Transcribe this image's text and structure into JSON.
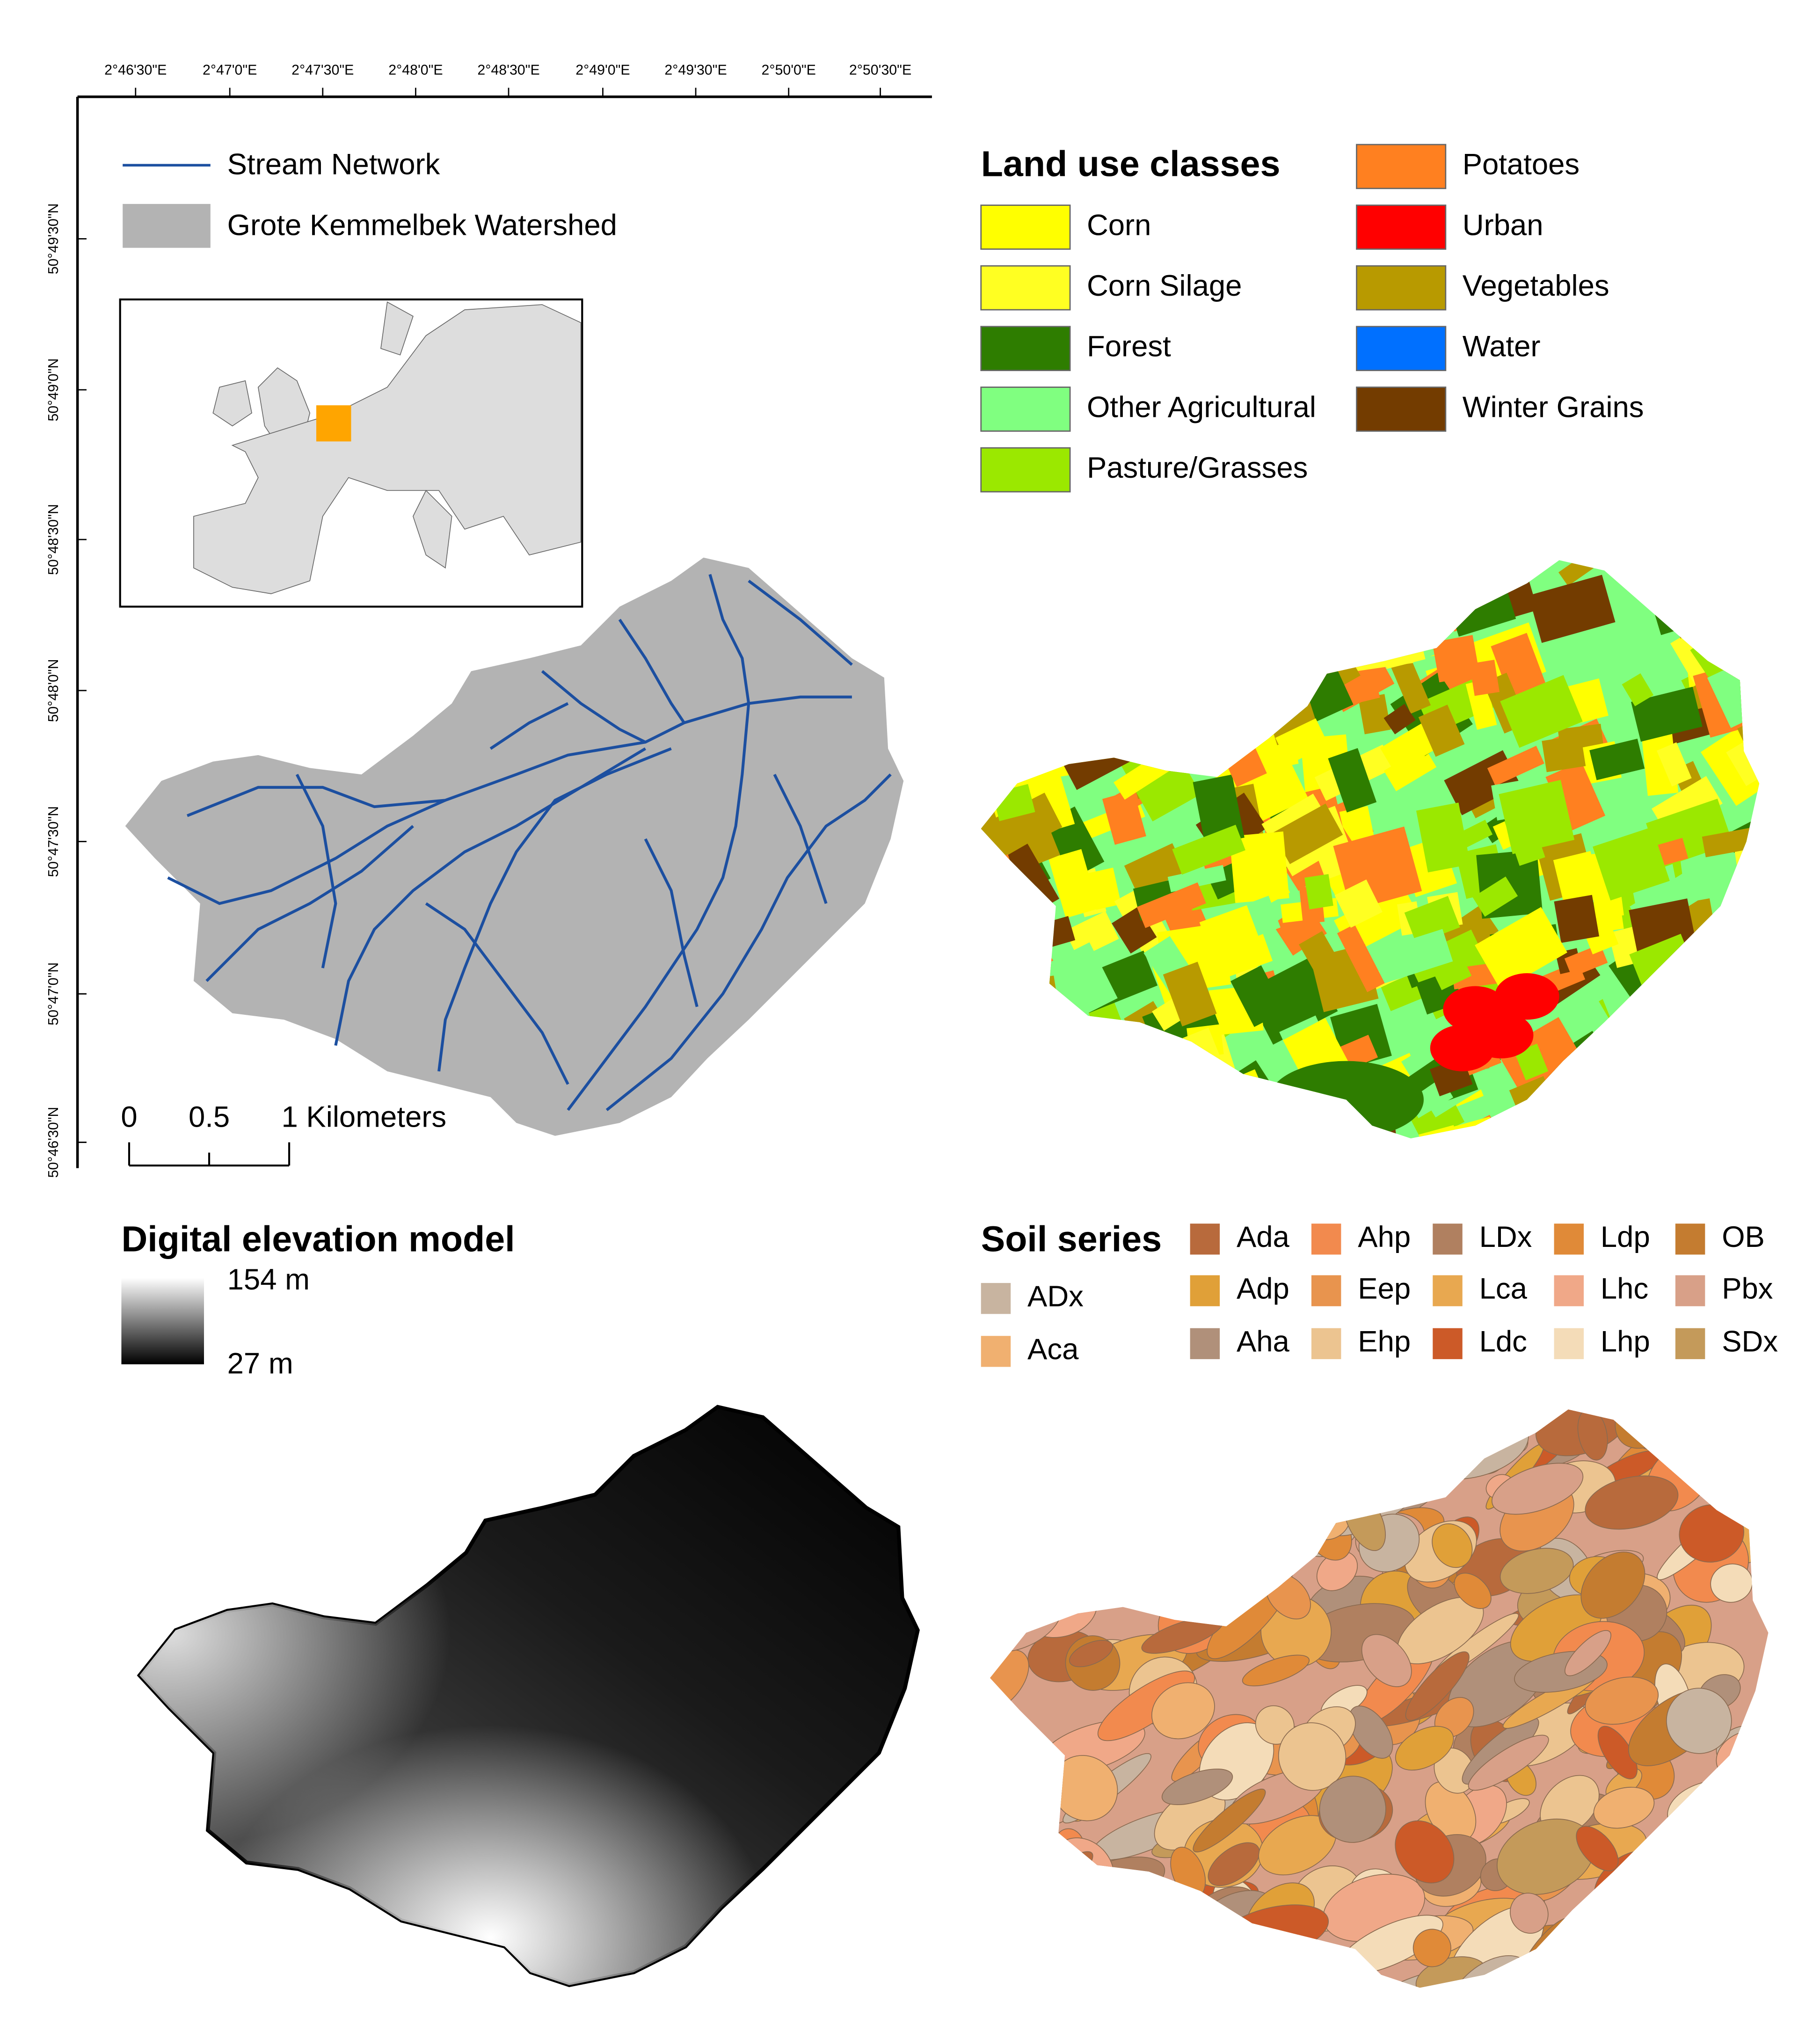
{
  "axes": {
    "longitude_ticks": [
      "2°46'30\"E",
      "2°47'0\"E",
      "2°47'30\"E",
      "2°48'0\"E",
      "2°48'30\"E",
      "2°49'0\"E",
      "2°49'30\"E",
      "2°50'0\"E",
      "2°50'30\"E"
    ],
    "latitude_ticks": [
      "50°49'30\"N",
      "50°49'0\"N",
      "50°48'30\"N",
      "50°48'0\"N",
      "50°47'30\"N",
      "50°47'0\"N",
      "50°46'30\"N"
    ]
  },
  "watershed_legend": {
    "items": [
      {
        "label": "Stream Network",
        "color": "#1c4fa0"
      },
      {
        "label": "Grote Kemmelbek Watershed",
        "color": "#b3b3b3"
      }
    ]
  },
  "scale_bar": {
    "labels": [
      "0",
      "0.5",
      "1 Kilometers"
    ]
  },
  "land_use_legend": {
    "title": "Land use classes",
    "items": [
      {
        "label": "Corn",
        "color": "#ffff00"
      },
      {
        "label": "Corn Silage",
        "color": "#ffff22"
      },
      {
        "label": "Forest",
        "color": "#2e7d00"
      },
      {
        "label": "Other Agricultural",
        "color": "#80ff80"
      },
      {
        "label": "Pasture/Grasses",
        "color": "#9be800"
      },
      {
        "label": "Potatoes",
        "color": "#ff8020"
      },
      {
        "label": "Urban",
        "color": "#ff0000"
      },
      {
        "label": "Vegetables",
        "color": "#b89a00"
      },
      {
        "label": "Water",
        "color": "#0070ff"
      },
      {
        "label": "Winter Grains",
        "color": "#733c00"
      }
    ]
  },
  "dem_legend": {
    "title": "Digital elevation model",
    "max_label": "154 m",
    "min_label": "27 m"
  },
  "soil_legend": {
    "title": "Soil series",
    "items": [
      {
        "label": "ADx",
        "color": "#c8b4a0"
      },
      {
        "label": "Aca",
        "color": "#f0b070"
      },
      {
        "label": "Ada",
        "color": "#b86a3c"
      },
      {
        "label": "Ahp",
        "color": "#f28a4e"
      },
      {
        "label": "LDx",
        "color": "#b08060"
      },
      {
        "label": "Ldp",
        "color": "#e08a38"
      },
      {
        "label": "OB",
        "color": "#c47c30"
      },
      {
        "label": "Adp",
        "color": "#e0a038"
      },
      {
        "label": "Eep",
        "color": "#e8944e"
      },
      {
        "label": "Lca",
        "color": "#e8a850"
      },
      {
        "label": "Lhc",
        "color": "#f0a888"
      },
      {
        "label": "Pbx",
        "color": "#d8a088"
      },
      {
        "label": "Aha",
        "color": "#b0907a"
      },
      {
        "label": "Ehp",
        "color": "#ecc490"
      },
      {
        "label": "Ldc",
        "color": "#cc5a28"
      },
      {
        "label": "Lhp",
        "color": "#f4dcb8"
      },
      {
        "label": "SDx",
        "color": "#c49a5a"
      }
    ]
  }
}
